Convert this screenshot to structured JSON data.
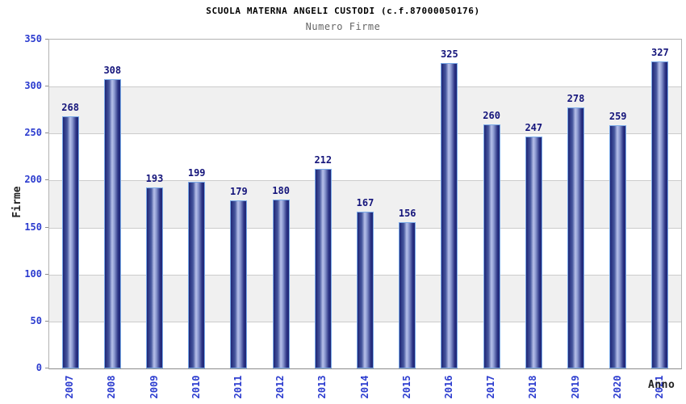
{
  "chart_data": {
    "type": "bar",
    "title": "SCUOLA MATERNA ANGELI CUSTODI (c.f.87000050176)",
    "subtitle": "Numero Firme",
    "xlabel": "Anno",
    "ylabel": "Firme",
    "categories": [
      "2007",
      "2008",
      "2009",
      "2010",
      "2011",
      "2012",
      "2013",
      "2014",
      "2015",
      "2016",
      "2017",
      "2018",
      "2019",
      "2020",
      "2021"
    ],
    "values": [
      268,
      308,
      193,
      199,
      179,
      180,
      212,
      167,
      156,
      325,
      260,
      247,
      278,
      259,
      327
    ],
    "ylim": [
      0,
      350
    ],
    "ytick_step": 50,
    "grid": true,
    "band_fill": "alternating-horizontal",
    "legend_position": "none",
    "value_labels_shown": true
  },
  "colors": {
    "background": "#ffffff",
    "title": "#000000",
    "subtitle": "#666666",
    "axis_text": "#2c3ccf",
    "value_label": "#15157b",
    "axis_label": "#222222",
    "band": "#f0f0f0",
    "gridline": "#cccccc",
    "plot_border": "#b3b3b3",
    "axis_line": "#8c8c8c",
    "bar_border": "#7aaae8",
    "bar_dark": "#1f2676",
    "bar_mid": "#47589f",
    "bar_light": "#b7c1ea"
  }
}
